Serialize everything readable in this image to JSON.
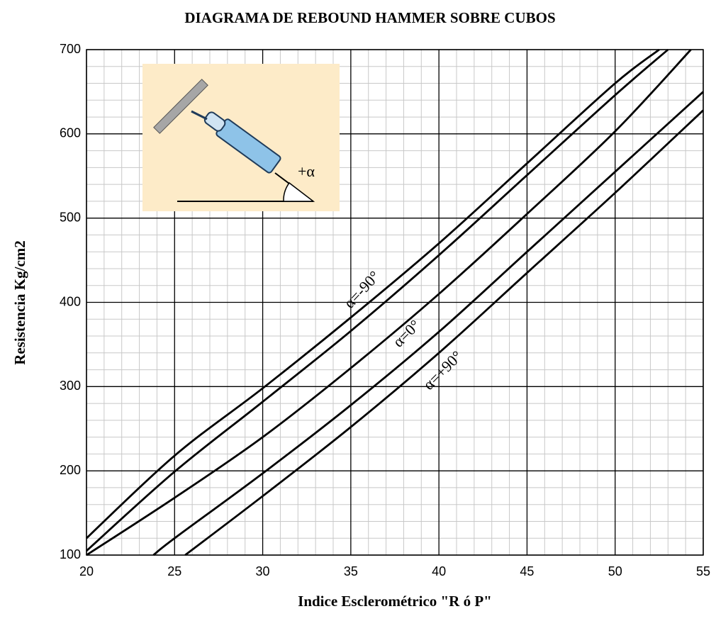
{
  "chart_data": {
    "type": "line",
    "title": "DIAGRAMA DE REBOUND HAMMER SOBRE CUBOS",
    "x_label": "Indice Esclerométrico \"R ó P\"",
    "y_label": "Resistencia Kg/cm2",
    "series": [
      {
        "color": "#000000",
        "x": [
          20,
          25,
          30,
          35,
          40,
          45,
          50,
          52.5
        ],
        "values": [
          120,
          218,
          298,
          382,
          470,
          565,
          660,
          700
        ]
      },
      {
        "color": "#000000",
        "x": [
          20,
          25,
          30,
          35,
          40,
          45,
          50,
          53
        ],
        "values": [
          105,
          199,
          282,
          366,
          456,
          551,
          646,
          700
        ]
      },
      {
        "color": "#000000",
        "x": [
          20,
          25,
          30,
          35,
          40,
          45,
          50,
          54.3
        ],
        "values": [
          100,
          168,
          240,
          322,
          410,
          505,
          603,
          700
        ]
      },
      {
        "color": "#000000",
        "x": [
          23.8,
          25,
          30,
          35,
          40,
          45,
          50,
          55
        ],
        "values": [
          100,
          120,
          197,
          278,
          365,
          460,
          555,
          650
        ]
      },
      {
        "color": "#000000",
        "x": [
          25.6,
          30,
          35,
          40,
          45,
          50,
          55
        ],
        "values": [
          100,
          170,
          252,
          340,
          435,
          530,
          628
        ]
      }
    ],
    "annotations": [
      "α=-90°",
      "α=0°",
      "α=+90°"
    ],
    "inset_label": "+α",
    "xlim": [
      20,
      55
    ],
    "xticks": [
      20,
      25,
      30,
      35,
      40,
      45,
      50,
      55
    ],
    "ylim": [
      100,
      700
    ],
    "yticks": [
      100,
      200,
      300,
      400,
      500,
      600,
      700
    ],
    "grid": true,
    "minor_grid": true
  }
}
